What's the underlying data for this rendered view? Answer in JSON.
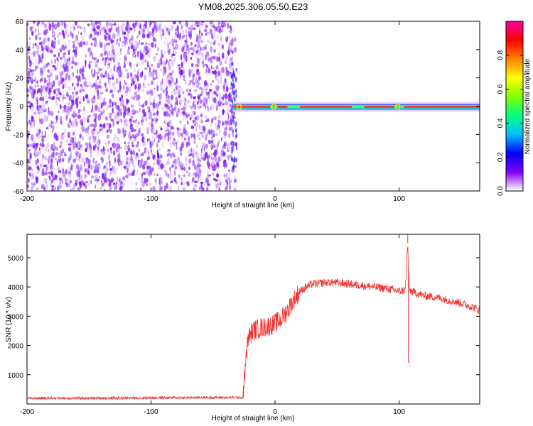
{
  "title": "YM08.2025.306.05.50.E23",
  "chart_data": [
    {
      "type": "heatmap",
      "xlabel": "Height of straight line (km)",
      "ylabel": "Frequency (Hz)",
      "xlim": [
        -200,
        165
      ],
      "ylim": [
        -60,
        60
      ],
      "xticks": [
        "-200",
        "-100",
        "0",
        "100"
      ],
      "yticks": [
        "60",
        "40",
        "20",
        "0",
        "-20",
        "-40",
        "-60"
      ],
      "grid": false,
      "noise_region_x": [
        -200,
        -32
      ],
      "signal_band_center_hz": 0,
      "colorbar": {
        "label": "Normalized spectral amplitude",
        "range": [
          0,
          1
        ],
        "ticks": [
          "0.0",
          "0.2",
          "0.4",
          "0.6",
          "0.8"
        ],
        "colors": [
          "#ffffff",
          "#8000ff",
          "#0000ff",
          "#00c0ff",
          "#00ff80",
          "#80ff00",
          "#ffff00",
          "#ff8000",
          "#ff0000",
          "#ff00a0"
        ]
      }
    },
    {
      "type": "line",
      "xlabel": "Height of straight line (km)",
      "ylabel": "SNR (10 * v/v)",
      "xlim": [
        -200,
        165
      ],
      "ylim": [
        0,
        5800
      ],
      "xticks": [
        "-200",
        "-100",
        "0",
        "100"
      ],
      "yticks": [
        "1000",
        "2000",
        "3000",
        "4000",
        "5000"
      ],
      "grid": false,
      "color": "#ee3333",
      "x": [
        -200,
        -150,
        -100,
        -50,
        -26,
        -22,
        -18,
        -12,
        -6,
        0,
        5,
        10,
        15,
        20,
        25,
        30,
        40,
        50,
        60,
        70,
        80,
        90,
        100,
        105,
        107,
        108,
        110,
        120,
        130,
        140,
        150,
        160,
        165
      ],
      "y": [
        200,
        200,
        210,
        220,
        220,
        2200,
        2500,
        2600,
        2650,
        2750,
        2900,
        3200,
        3550,
        3850,
        4000,
        4100,
        4150,
        4150,
        4100,
        4050,
        4000,
        3950,
        3850,
        3900,
        5500,
        3900,
        3850,
        3700,
        3650,
        3550,
        3450,
        3300,
        3200
      ],
      "spikes": [
        {
          "x": 107,
          "y": 5800
        },
        {
          "x": 107.5,
          "y": 1400
        }
      ]
    }
  ]
}
